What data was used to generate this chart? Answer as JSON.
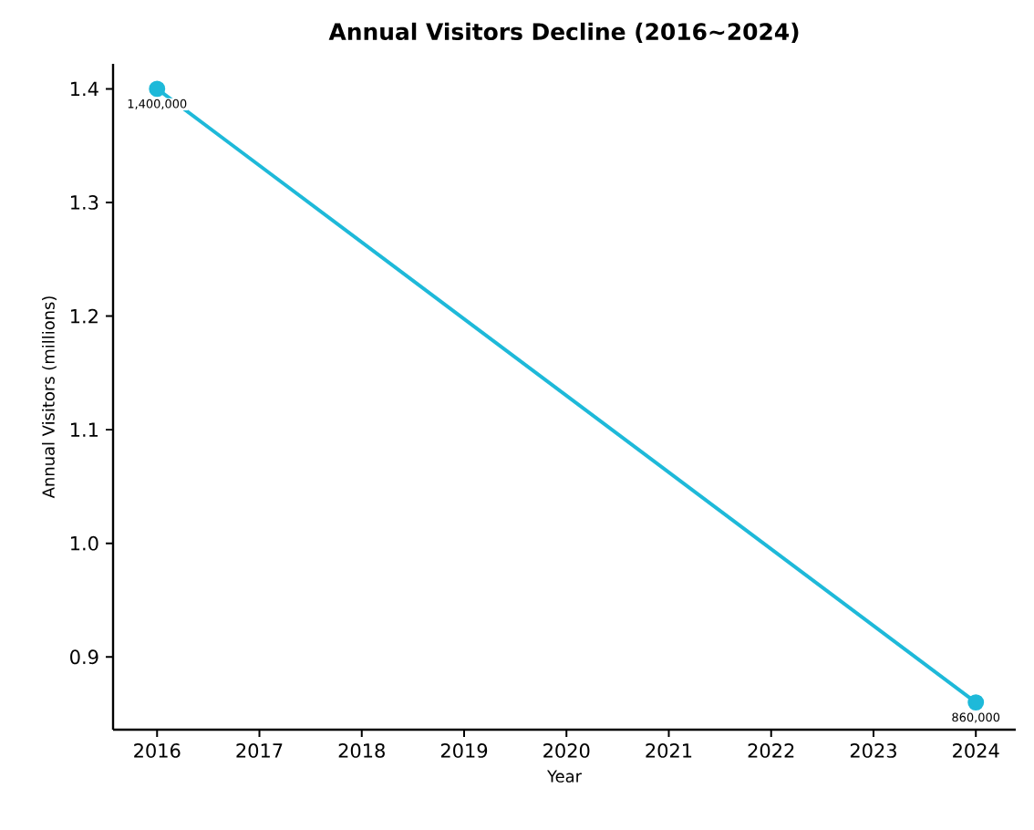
{
  "chart_data": {
    "type": "line",
    "title": "Annual Visitors Decline (2016~2024)",
    "xlabel": "Year",
    "ylabel": "Annual Visitors (millions)",
    "x": [
      2016,
      2024
    ],
    "series": [
      {
        "color": "#1eb9d9",
        "values": [
          1.4,
          0.86
        ]
      }
    ],
    "annotations": [
      {
        "text": "1,400,000",
        "x": 2016,
        "y": 1.4
      },
      {
        "text": "860,000",
        "x": 2024,
        "y": 0.86
      }
    ],
    "xlim": [
      2015.57,
      2024.39
    ],
    "xticks": [
      2016,
      2017,
      2018,
      2019,
      2020,
      2021,
      2022,
      2023,
      2024
    ],
    "ylim": [
      0.836,
      1.422
    ],
    "yticks": [
      0.9,
      {
        "value": 1.0,
        "label": "1.0"
      },
      1.1,
      1.2,
      1.3,
      1.4
    ],
    "marker": "circle",
    "line_style": "solid"
  }
}
